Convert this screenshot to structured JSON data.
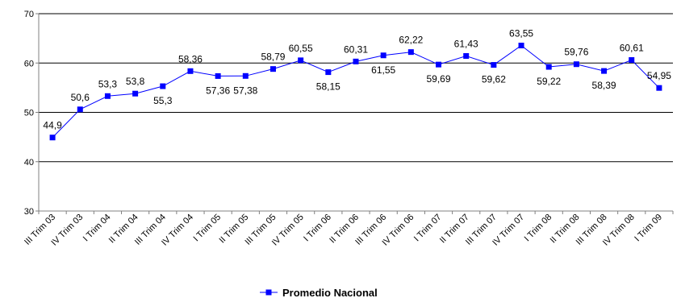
{
  "chart_data": {
    "type": "line",
    "categories": [
      "III Trim 03",
      "IV Trim 03",
      "I Trim 04",
      "II Trim 04",
      "III Trim 04",
      "IV Trim 04",
      "I Trim 05",
      "II Trim 05",
      "III Trim 05",
      "IV Trim 05",
      "I Trim 06",
      "II Trim 06",
      "III Trim 06",
      "IV Trim 06",
      "I Trim 07",
      "II Trim 07",
      "III Trim 07",
      "IV Trim 07",
      "I Trim 08",
      "II Trim 08",
      "III Trim 08",
      "IV Trim 08",
      "I Trim 09"
    ],
    "tick_labels": [
      "III Trim 03",
      "IV Trim 03",
      "I Trim 04",
      "II Trim 04",
      "III Trim 04",
      "IV Trim 04",
      "I Trim 05",
      "II Trim 05",
      "III Trim 05",
      "IV Trim 05",
      "I Trim 06",
      "II Trim 06",
      "III Trim 06",
      "IV Trim 06",
      "I Trim 07",
      "II Trim 07",
      "III Trim 07",
      "IV Trim 07",
      "I Trim 08",
      "II Trim 08",
      "III Trim 08",
      "IV Trim 08",
      "I Trim 09"
    ],
    "series": [
      {
        "name": "Promedio Nacional",
        "color": "#0000ff",
        "values": [
          44.9,
          50.6,
          53.3,
          53.8,
          55.3,
          58.36,
          57.36,
          57.38,
          58.79,
          60.55,
          58.15,
          60.31,
          61.55,
          62.22,
          59.69,
          61.43,
          59.62,
          63.55,
          59.22,
          59.76,
          58.39,
          60.61,
          54.95
        ],
        "data_labels": [
          "44,9",
          "50,6",
          "53,3",
          "53,8",
          "55,3",
          "58,36",
          "57,36",
          "57,38",
          "58,79",
          "60,55",
          "58,15",
          "60,31",
          "61,55",
          "62,22",
          "59,69",
          "61,43",
          "59,62",
          "63,55",
          "59,22",
          "59,76",
          "58,39",
          "60,61",
          "54,95"
        ]
      }
    ],
    "ylim": [
      30,
      70
    ],
    "yticks": [
      "30",
      "40",
      "50",
      "60",
      "70"
    ],
    "grid": true,
    "legend": {
      "position": "bottom",
      "label": "Promedio Nacional"
    },
    "colors": {
      "line": "#0000ff",
      "marker": "#0000ff",
      "axis": "#808080",
      "grid": "#000000"
    }
  }
}
